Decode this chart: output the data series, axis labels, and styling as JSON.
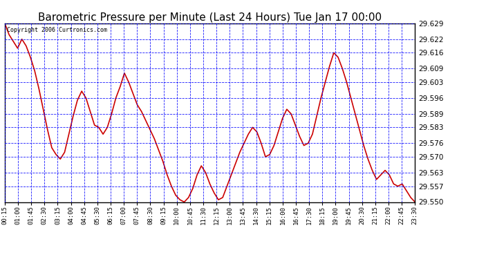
{
  "title": "Barometric Pressure per Minute (Last 24 Hours) Tue Jan 17 00:00",
  "copyright": "Copyright 2006 Curtronics.com",
  "ylim": [
    29.55,
    29.629
  ],
  "yticks": [
    29.55,
    29.557,
    29.563,
    29.57,
    29.576,
    29.583,
    29.589,
    29.596,
    29.603,
    29.609,
    29.616,
    29.622,
    29.629
  ],
  "xtick_labels": [
    "00:15",
    "01:00",
    "01:45",
    "02:30",
    "03:15",
    "04:00",
    "04:45",
    "05:30",
    "06:15",
    "07:00",
    "07:45",
    "08:30",
    "09:15",
    "10:00",
    "10:45",
    "11:30",
    "12:15",
    "13:00",
    "13:45",
    "14:30",
    "15:15",
    "16:00",
    "16:45",
    "17:30",
    "18:15",
    "19:00",
    "19:45",
    "20:30",
    "21:15",
    "22:00",
    "22:45",
    "23:30"
  ],
  "line_color": "#cc0000",
  "background_color": "#ffffff",
  "plot_bg_color": "#ffffff",
  "grid_color": "#0000ff",
  "title_fontsize": 11,
  "pressure_values": [
    29.629,
    29.624,
    29.621,
    29.618,
    29.622,
    29.619,
    29.614,
    29.608,
    29.6,
    29.591,
    29.582,
    29.574,
    29.571,
    29.569,
    29.572,
    29.58,
    29.588,
    29.595,
    29.599,
    29.596,
    29.59,
    29.584,
    29.583,
    29.58,
    29.583,
    29.589,
    29.596,
    29.601,
    29.607,
    29.603,
    29.598,
    29.593,
    29.59,
    29.586,
    29.582,
    29.578,
    29.573,
    29.568,
    29.562,
    29.557,
    29.553,
    29.551,
    29.55,
    29.552,
    29.556,
    29.562,
    29.566,
    29.563,
    29.558,
    29.554,
    29.551,
    29.552,
    29.557,
    29.562,
    29.567,
    29.572,
    29.576,
    29.58,
    29.583,
    29.581,
    29.576,
    29.57,
    29.571,
    29.575,
    29.581,
    29.587,
    29.591,
    29.589,
    29.584,
    29.579,
    29.575,
    29.576,
    29.58,
    29.588,
    29.596,
    29.603,
    29.61,
    29.616,
    29.614,
    29.609,
    29.603,
    29.596,
    29.589,
    29.582,
    29.575,
    29.569,
    29.564,
    29.56,
    29.562,
    29.564,
    29.562,
    29.558,
    29.557,
    29.558,
    29.555,
    29.552,
    29.55
  ]
}
